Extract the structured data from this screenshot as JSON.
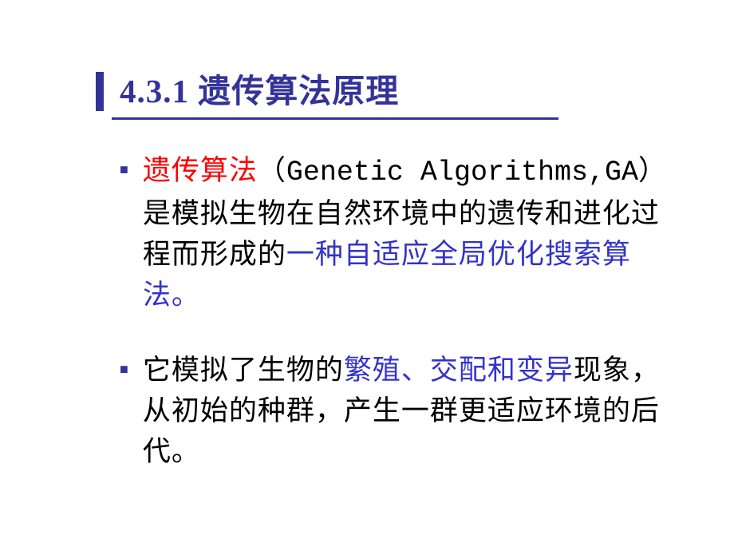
{
  "slide": {
    "title": "4.3.1 遗传算法原理",
    "title_color": "#333399",
    "title_fontsize": 41,
    "underline_color": "#333399",
    "left_border_color": "#333399",
    "background_color": "#ffffff",
    "bullets": [
      {
        "bullet_color": "#333399",
        "segments": [
          {
            "text": "遗传算法",
            "color": "#ff0000",
            "class": "red-text"
          },
          {
            "text": "（",
            "color": "#000000",
            "class": ""
          },
          {
            "text": "Genetic Algorithms,GA",
            "color": "#000000",
            "class": "english"
          },
          {
            "text": "）是模拟生物在自然环境中的遗传和进化过程而形成的",
            "color": "#000000",
            "class": ""
          },
          {
            "text": "一种自适应全局优化搜索算法。",
            "color": "#3333cc",
            "class": "blue-text"
          }
        ]
      },
      {
        "bullet_color": "#333399",
        "segments": [
          {
            "text": "它模拟了生物的",
            "color": "#000000",
            "class": ""
          },
          {
            "text": "繁殖、交配和变异",
            "color": "#3333cc",
            "class": "blue-text"
          },
          {
            "text": "现象，从初始的种群，产生一群更适应环境的后代。",
            "color": "#000000",
            "class": ""
          }
        ]
      }
    ],
    "body_fontsize": 35,
    "body_line_height": 1.46
  }
}
